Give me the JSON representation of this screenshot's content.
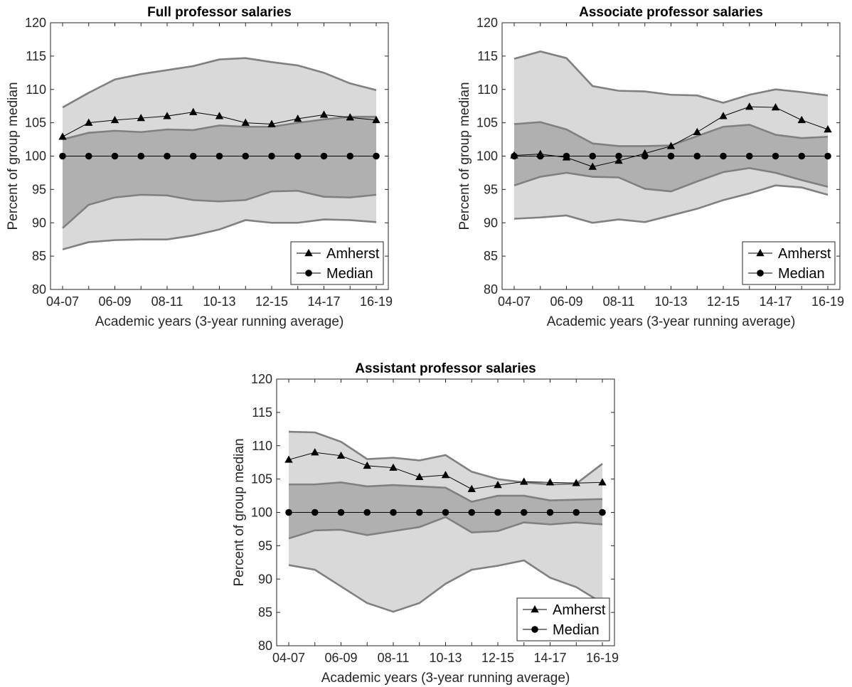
{
  "figure_name": "salary-comparison-figure",
  "chart_data": [
    {
      "id": "full",
      "type": "area",
      "title": "Full professor salaries",
      "xlabel": "Academic years (3-year running average)",
      "ylabel": "Percent of group median",
      "ylim": [
        80,
        120
      ],
      "yticks": [
        80,
        85,
        90,
        95,
        100,
        105,
        110,
        115,
        120
      ],
      "categories": [
        "04-07",
        "05-08",
        "06-09",
        "07-10",
        "08-11",
        "09-12",
        "10-13",
        "11-14",
        "12-15",
        "13-16",
        "14-17",
        "15-18",
        "16-19"
      ],
      "xtick_labels": [
        "04-07",
        "06-09",
        "08-11",
        "10-13",
        "12-15",
        "14-17",
        "16-19"
      ],
      "legend_position": "bottom-right",
      "grid": false,
      "colors": {
        "outer_band": "#d9d9d9",
        "inner_band": "#b0b0b0",
        "band_edge": "#808080",
        "series": "#000000"
      },
      "bands": {
        "outer_upper": [
          107.3,
          109.5,
          111.5,
          112.3,
          112.9,
          113.5,
          114.5,
          114.7,
          114.1,
          113.6,
          112.5,
          110.9,
          109.9
        ],
        "inner_upper": [
          102.5,
          103.5,
          103.8,
          103.6,
          104.0,
          103.9,
          104.6,
          104.4,
          104.4,
          105.0,
          105.5,
          105.9,
          105.9
        ],
        "inner_lower": [
          89.2,
          92.7,
          93.8,
          94.2,
          94.1,
          93.4,
          93.2,
          93.4,
          94.7,
          94.8,
          93.9,
          93.8,
          94.2
        ],
        "outer_lower": [
          86.0,
          87.1,
          87.4,
          87.5,
          87.5,
          88.1,
          89.0,
          90.4,
          90.0,
          90.0,
          90.5,
          90.4,
          90.1
        ]
      },
      "series": [
        {
          "name": "Amherst",
          "marker": "triangle",
          "values": [
            102.9,
            105.0,
            105.4,
            105.7,
            106.0,
            106.6,
            106.0,
            105.0,
            104.8,
            105.6,
            106.2,
            105.8,
            105.4
          ]
        },
        {
          "name": "Median",
          "marker": "circle",
          "values": [
            100,
            100,
            100,
            100,
            100,
            100,
            100,
            100,
            100,
            100,
            100,
            100,
            100
          ]
        }
      ]
    },
    {
      "id": "associate",
      "type": "area",
      "title": "Associate professor salaries",
      "xlabel": "Academic years (3-year running average)",
      "ylabel": "Percent of group median",
      "ylim": [
        80,
        120
      ],
      "yticks": [
        80,
        85,
        90,
        95,
        100,
        105,
        110,
        115,
        120
      ],
      "categories": [
        "04-07",
        "05-08",
        "06-09",
        "07-10",
        "08-11",
        "09-12",
        "10-13",
        "11-14",
        "12-15",
        "13-16",
        "14-17",
        "15-18",
        "16-19"
      ],
      "xtick_labels": [
        "04-07",
        "06-09",
        "08-11",
        "10-13",
        "12-15",
        "14-17",
        "16-19"
      ],
      "legend_position": "bottom-right",
      "grid": false,
      "colors": {
        "outer_band": "#d9d9d9",
        "inner_band": "#b0b0b0",
        "band_edge": "#808080",
        "series": "#000000"
      },
      "bands": {
        "outer_upper": [
          114.6,
          115.7,
          114.7,
          110.5,
          109.8,
          109.7,
          109.2,
          109.1,
          108.0,
          109.2,
          110.0,
          109.6,
          109.1
        ],
        "inner_upper": [
          104.8,
          105.1,
          104.0,
          101.9,
          101.5,
          101.5,
          101.6,
          103.0,
          104.4,
          104.7,
          103.2,
          102.7,
          102.9
        ],
        "inner_lower": [
          95.6,
          96.9,
          97.5,
          96.9,
          96.8,
          95.1,
          94.7,
          96.2,
          97.6,
          98.2,
          97.5,
          96.4,
          95.4
        ],
        "outer_lower": [
          90.6,
          90.8,
          91.1,
          90.0,
          90.5,
          90.1,
          91.1,
          92.1,
          93.4,
          94.4,
          95.6,
          95.3,
          94.2
        ]
      },
      "series": [
        {
          "name": "Amherst",
          "marker": "triangle",
          "values": [
            100.1,
            100.3,
            99.8,
            98.4,
            99.3,
            100.4,
            101.5,
            103.6,
            106.0,
            107.4,
            107.3,
            105.4,
            104.0
          ]
        },
        {
          "name": "Median",
          "marker": "circle",
          "values": [
            100,
            100,
            100,
            100,
            100,
            100,
            100,
            100,
            100,
            100,
            100,
            100,
            100
          ]
        }
      ]
    },
    {
      "id": "assistant",
      "type": "area",
      "title": "Assistant professor salaries",
      "xlabel": "Academic years (3-year running average)",
      "ylabel": "Percent of group median",
      "ylim": [
        80,
        120
      ],
      "yticks": [
        80,
        85,
        90,
        95,
        100,
        105,
        110,
        115,
        120
      ],
      "categories": [
        "04-07",
        "05-08",
        "06-09",
        "07-10",
        "08-11",
        "09-12",
        "10-13",
        "11-14",
        "12-15",
        "13-16",
        "14-17",
        "15-18",
        "16-19"
      ],
      "xtick_labels": [
        "04-07",
        "06-09",
        "08-11",
        "10-13",
        "12-15",
        "14-17",
        "16-19"
      ],
      "legend_position": "bottom-right",
      "grid": false,
      "colors": {
        "outer_band": "#d9d9d9",
        "inner_band": "#b0b0b0",
        "band_edge": "#808080",
        "series": "#000000"
      },
      "bands": {
        "outer_upper": [
          112.1,
          112.0,
          110.6,
          108.0,
          108.2,
          107.8,
          108.6,
          106.1,
          105.0,
          104.5,
          104.2,
          104.3,
          107.3
        ],
        "inner_upper": [
          104.2,
          104.2,
          104.5,
          103.9,
          104.1,
          103.9,
          103.7,
          101.6,
          102.5,
          102.5,
          101.8,
          101.9,
          102.0
        ],
        "inner_lower": [
          96.1,
          97.3,
          97.4,
          96.6,
          97.2,
          97.8,
          99.3,
          97.0,
          97.2,
          98.5,
          98.2,
          98.5,
          98.2
        ],
        "outer_lower": [
          92.1,
          91.4,
          88.9,
          86.4,
          85.1,
          86.4,
          89.3,
          91.4,
          92.0,
          92.8,
          90.2,
          88.8,
          86.4
        ]
      },
      "series": [
        {
          "name": "Amherst",
          "marker": "triangle",
          "values": [
            107.9,
            109.0,
            108.5,
            107.0,
            106.7,
            105.3,
            105.6,
            103.5,
            104.1,
            104.6,
            104.5,
            104.4,
            104.5
          ]
        },
        {
          "name": "Median",
          "marker": "circle",
          "values": [
            100,
            100,
            100,
            100,
            100,
            100,
            100,
            100,
            100,
            100,
            100,
            100,
            100
          ]
        }
      ]
    }
  ]
}
